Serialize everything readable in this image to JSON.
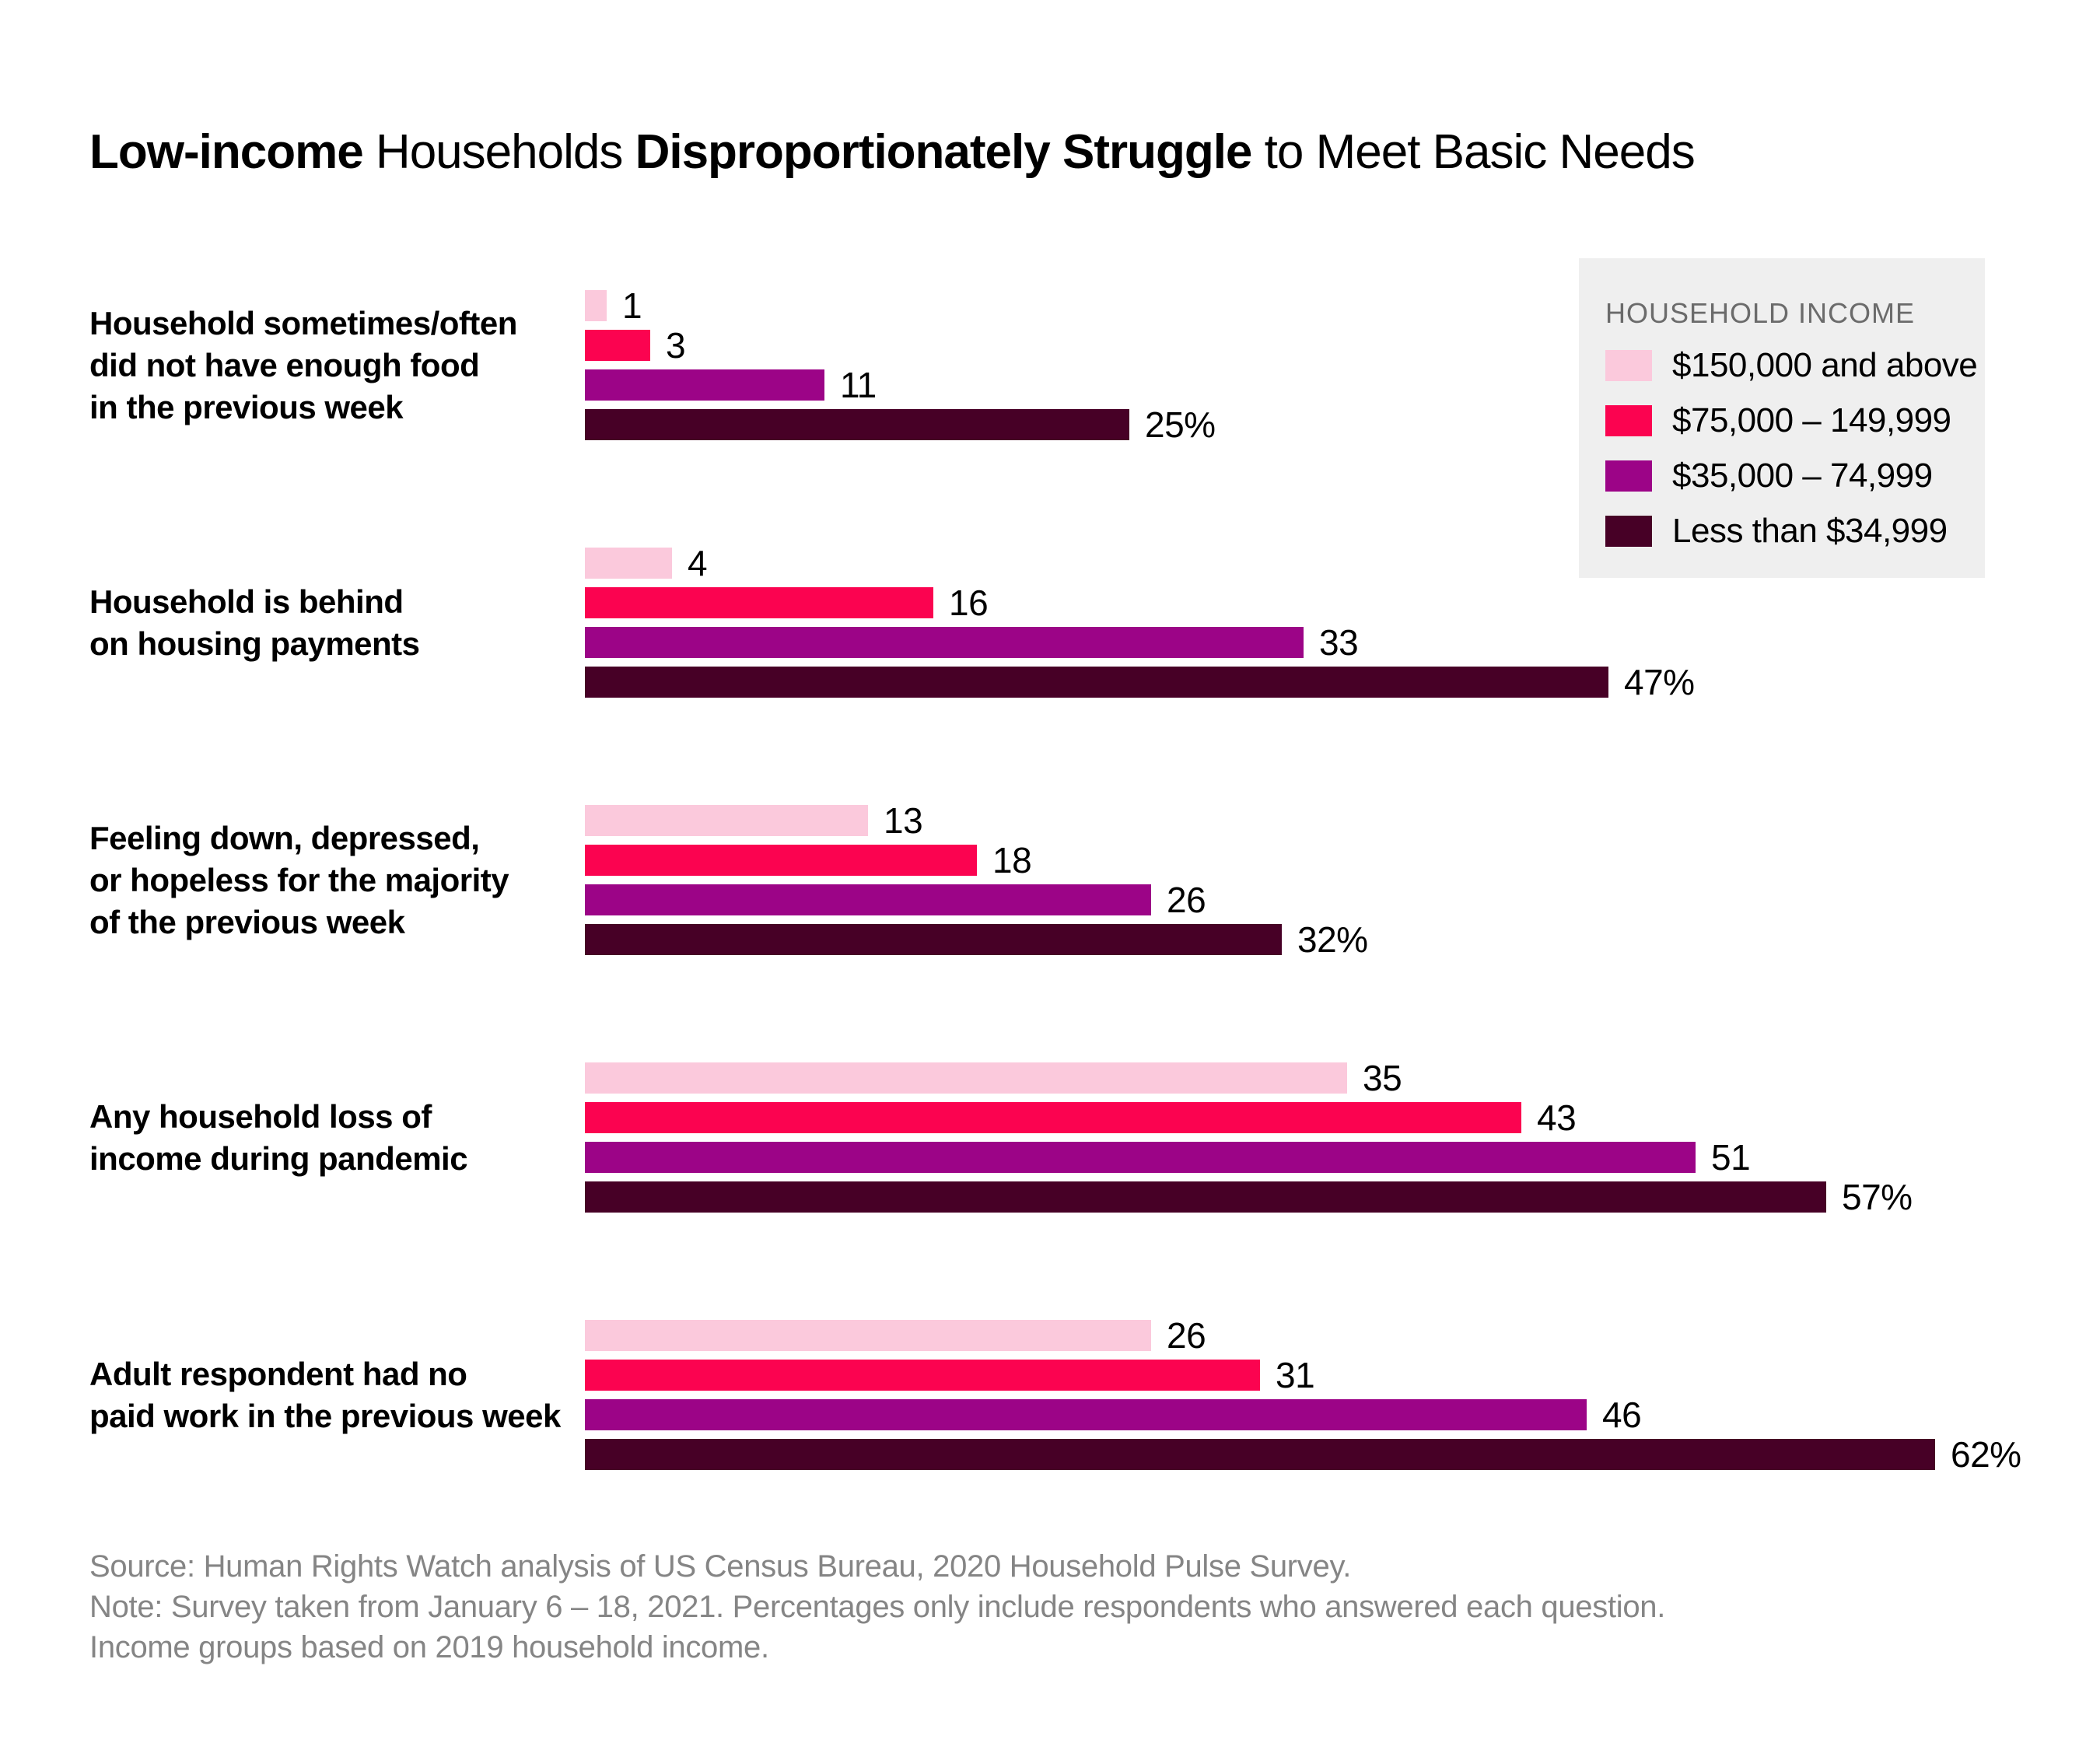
{
  "title": {
    "segments": [
      {
        "text": "Low-income",
        "bold": true
      },
      {
        "text": " Households ",
        "bold": false
      },
      {
        "text": "Disproportionately Struggle",
        "bold": true
      },
      {
        "text": " to Meet Basic Needs",
        "bold": false
      }
    ]
  },
  "legend": {
    "title": "HOUSEHOLD INCOME",
    "items": [
      {
        "label": "$150,000 and above",
        "color": "#fbc9dc"
      },
      {
        "label": "$75,000 – 149,999",
        "color": "#fb0350"
      },
      {
        "label": "$35,000 – 74,999",
        "color": "#9c0487"
      },
      {
        "label": "Less than $34,999",
        "color": "#470026"
      }
    ]
  },
  "chart_data": {
    "type": "bar",
    "orientation": "horizontal",
    "unit": "percent",
    "xlim": [
      0,
      62
    ],
    "grid": false,
    "legend_position": "top-right",
    "series_names": [
      "$150,000 and above",
      "$75,000 – 149,999",
      "$35,000 – 74,999",
      "Less than $34,999"
    ],
    "groups": [
      {
        "category": "Household sometimes/often did not have enough food in the previous week",
        "label_lines": [
          "Household sometimes/often",
          "did not have enough food",
          "in the previous week"
        ],
        "values": [
          1,
          3,
          11,
          25
        ],
        "value_labels": [
          "1",
          "3",
          "11",
          "25%"
        ]
      },
      {
        "category": "Household is behind on housing payments",
        "label_lines": [
          "Household is behind",
          "on housing payments"
        ],
        "values": [
          4,
          16,
          33,
          47
        ],
        "value_labels": [
          "4",
          "16",
          "33",
          "47%"
        ]
      },
      {
        "category": "Feeling down, depressed, or hopeless for the majority of the previous week",
        "label_lines": [
          "Feeling down, depressed,",
          "or hopeless for the majority",
          "of the previous week"
        ],
        "values": [
          13,
          18,
          26,
          32
        ],
        "value_labels": [
          "13",
          "18",
          "26",
          "32%"
        ]
      },
      {
        "category": "Any household loss of income during pandemic",
        "label_lines": [
          "Any household loss of",
          "income during pandemic"
        ],
        "values": [
          35,
          43,
          51,
          57
        ],
        "value_labels": [
          "35",
          "43",
          "51",
          "57%"
        ]
      },
      {
        "category": "Adult respondent had no paid work in the previous week",
        "label_lines": [
          "Adult respondent had no",
          "paid work in the previous week"
        ],
        "values": [
          26,
          31,
          46,
          62
        ],
        "value_labels": [
          "26",
          "31",
          "46",
          "62%"
        ]
      }
    ]
  },
  "footer": {
    "lines": [
      "Source: Human Rights Watch analysis of US Census Bureau, 2020 Household Pulse Survey.",
      "Note: Survey taken from January 6 – 18, 2021. Percentages only include respondents who answered each question.",
      "Income groups based on 2019 household income."
    ]
  },
  "colors": {
    "background": "#ffffff",
    "legend_background": "#efefef",
    "legend_title_text": "#6b6b6b",
    "footer_text": "#858585",
    "text": "#000000"
  }
}
